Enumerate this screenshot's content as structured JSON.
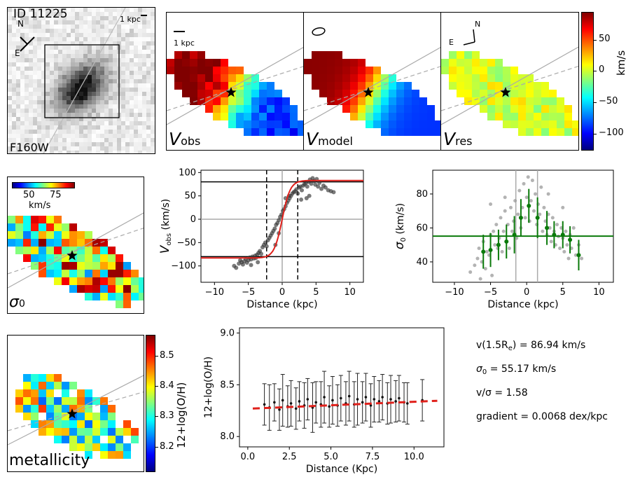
{
  "hst": {
    "id_label": "ID 11225",
    "scale_label": "1 kpc",
    "filter": "F160W",
    "north": "N",
    "east": "E"
  },
  "maps": {
    "vobs": {
      "sym": "V",
      "sub": "obs",
      "scale_label": "1 kpc"
    },
    "vmodel": {
      "sym": "V",
      "sub": "model"
    },
    "vres": {
      "sym": "V",
      "sub": "res",
      "north": "N",
      "east": "E"
    }
  },
  "vel_colorbar": {
    "ticks": [
      "50",
      "0",
      "−50",
      "−100"
    ],
    "label": "km/s"
  },
  "sigma_map": {
    "sym": "σ",
    "sub": "0",
    "ticks": [
      "50",
      "75"
    ],
    "unit": "km/s"
  },
  "metal_map": {
    "label": "metallicity",
    "ticks": [
      "8.5",
      "8.4",
      "8.3",
      "8.2"
    ],
    "cbar_label": "12+log(O/H)"
  },
  "stats": {
    "vre": {
      "pre": "v(1.5R",
      "sub": "e",
      "post": ") = 86.94 km/s"
    },
    "sigma": {
      "pre": "σ",
      "sub": "0",
      "post": " = 55.17 km/s"
    },
    "ratio": "v/σ = 1.58",
    "gradient": "gradient = 0.0068 dex/kpc"
  },
  "chart_data": [
    {
      "type": "scatter",
      "name": "rotation_curve",
      "xlabel": "Distance (kpc)",
      "ylabel_sym": "V",
      "ylabel_sub": "obs",
      "ylabel_unit": " (km/s)",
      "xlim": [
        -12,
        12
      ],
      "ylim": [
        -135,
        105
      ],
      "xticks": [
        -10,
        -5,
        0,
        5,
        10
      ],
      "yticks": [
        -100,
        -50,
        0,
        50,
        100
      ],
      "xtick_labels": [
        "−10",
        "−5",
        "0",
        "5",
        "10"
      ],
      "ytick_labels": [
        "−100",
        "−50",
        "0",
        "50",
        "100"
      ],
      "model_curve": {
        "vmax": 83,
        "rt": 1.2,
        "color": "#e0201b"
      },
      "hlines": [
        80,
        -80
      ],
      "vlines_dashed": [
        -2.3,
        2.3
      ],
      "vline_gray": 0,
      "hline_gray": 0,
      "points": [
        [
          -7.1,
          -100
        ],
        [
          -6.8,
          -104
        ],
        [
          -6.4,
          -95
        ],
        [
          -6.2,
          -88
        ],
        [
          -6.0,
          -92
        ],
        [
          -5.8,
          -97
        ],
        [
          -5.6,
          -90
        ],
        [
          -5.4,
          -85
        ],
        [
          -5.2,
          -93
        ],
        [
          -5.0,
          -88
        ],
        [
          -4.8,
          -82
        ],
        [
          -4.6,
          -86
        ],
        [
          -4.4,
          -80
        ],
        [
          -4.2,
          -84
        ],
        [
          -4.0,
          -78
        ],
        [
          -3.9,
          -83
        ],
        [
          -3.7,
          -76
        ],
        [
          -3.5,
          -72
        ],
        [
          -3.3,
          -68
        ],
        [
          -3.1,
          -74
        ],
        [
          -2.9,
          -60
        ],
        [
          -2.7,
          -55
        ],
        [
          -2.5,
          -50
        ],
        [
          -2.3,
          -58
        ],
        [
          -2.1,
          -45
        ],
        [
          -1.9,
          -40
        ],
        [
          -1.7,
          -35
        ],
        [
          -1.5,
          -30
        ],
        [
          -1.3,
          -25
        ],
        [
          -1.1,
          -20
        ],
        [
          -0.9,
          -12
        ],
        [
          -0.7,
          -8
        ],
        [
          -0.5,
          -2
        ],
        [
          -0.3,
          5
        ],
        [
          -0.1,
          10
        ],
        [
          0.1,
          18
        ],
        [
          0.3,
          22
        ],
        [
          0.5,
          28
        ],
        [
          0.7,
          35
        ],
        [
          0.9,
          40
        ],
        [
          1.1,
          45
        ],
        [
          1.3,
          50
        ],
        [
          1.5,
          55
        ],
        [
          1.7,
          58
        ],
        [
          1.9,
          60
        ],
        [
          2.1,
          64
        ],
        [
          2.3,
          55
        ],
        [
          2.5,
          68
        ],
        [
          2.7,
          70
        ],
        [
          2.9,
          62
        ],
        [
          3.1,
          72
        ],
        [
          3.3,
          75
        ],
        [
          3.5,
          78
        ],
        [
          3.7,
          70
        ],
        [
          3.9,
          80
        ],
        [
          4.1,
          85
        ],
        [
          4.3,
          76
        ],
        [
          4.5,
          88
        ],
        [
          4.7,
          82
        ],
        [
          4.9,
          74
        ],
        [
          5.1,
          86
        ],
        [
          5.3,
          70
        ],
        [
          5.5,
          78
        ],
        [
          5.8,
          65
        ],
        [
          6.1,
          72
        ],
        [
          6.4,
          68
        ],
        [
          6.8,
          62
        ],
        [
          7.2,
          60
        ],
        [
          7.6,
          58
        ],
        [
          3.6,
          45
        ],
        [
          4.0,
          50
        ],
        [
          2.8,
          42
        ],
        [
          -3.6,
          -92
        ],
        [
          -4.6,
          -98
        ],
        [
          -1.0,
          -55
        ],
        [
          1.0,
          50
        ],
        [
          0.5,
          45
        ],
        [
          -0.5,
          -30
        ]
      ]
    },
    {
      "type": "scatter",
      "name": "dispersion_profile",
      "xlabel": "Distance (kpc)",
      "ylabel_sym": "σ",
      "ylabel_sub": "0",
      "ylabel_unit": " (km/s)",
      "xlim": [
        -13,
        12
      ],
      "ylim": [
        28,
        94
      ],
      "xticks": [
        -10,
        -5,
        0,
        5,
        10
      ],
      "yticks": [
        40,
        60,
        80
      ],
      "xtick_labels": [
        "−10",
        "−5",
        "0",
        "5",
        "10"
      ],
      "ytick_labels": [
        "40",
        "60",
        "80"
      ],
      "hline": 55.17,
      "vlines_gray": [
        -1.5,
        1.5
      ],
      "binned": [
        [
          -6.0,
          46,
          10
        ],
        [
          -5.0,
          47,
          10
        ],
        [
          -3.9,
          50,
          9
        ],
        [
          -2.8,
          52,
          10
        ],
        [
          -1.7,
          56,
          11
        ],
        [
          -0.8,
          66,
          11
        ],
        [
          0.3,
          73,
          10
        ],
        [
          1.5,
          66,
          12
        ],
        [
          2.8,
          60,
          10
        ],
        [
          3.8,
          56,
          8
        ],
        [
          5.0,
          56,
          8
        ],
        [
          6.0,
          53,
          8
        ],
        [
          7.2,
          44,
          9
        ]
      ],
      "points": [
        [
          -7.8,
          34
        ],
        [
          -7.2,
          38
        ],
        [
          -6.8,
          42
        ],
        [
          -6.6,
          48
        ],
        [
          -6.2,
          40
        ],
        [
          -6.0,
          52
        ],
        [
          -5.7,
          36
        ],
        [
          -5.5,
          46
        ],
        [
          -5.2,
          44
        ],
        [
          -5.0,
          56
        ],
        [
          -4.8,
          32
        ],
        [
          -4.6,
          58
        ],
        [
          -4.4,
          50
        ],
        [
          -4.2,
          62
        ],
        [
          -4.0,
          48
        ],
        [
          -3.8,
          54
        ],
        [
          -3.6,
          66
        ],
        [
          -3.4,
          46
        ],
        [
          -3.2,
          58
        ],
        [
          -3.0,
          70
        ],
        [
          -2.8,
          52
        ],
        [
          -2.6,
          62
        ],
        [
          -2.4,
          48
        ],
        [
          -2.2,
          72
        ],
        [
          -2.0,
          58
        ],
        [
          -1.8,
          64
        ],
        [
          -1.6,
          76
        ],
        [
          -1.4,
          54
        ],
        [
          -1.2,
          68
        ],
        [
          -1.0,
          82
        ],
        [
          -0.8,
          60
        ],
        [
          -0.6,
          72
        ],
        [
          -0.4,
          86
        ],
        [
          -0.2,
          66
        ],
        [
          0.0,
          78
        ],
        [
          0.2,
          90
        ],
        [
          0.4,
          64
        ],
        [
          0.6,
          76
        ],
        [
          0.8,
          88
        ],
        [
          1.0,
          70
        ],
        [
          1.2,
          80
        ],
        [
          1.4,
          62
        ],
        [
          1.6,
          74
        ],
        [
          1.8,
          68
        ],
        [
          2.0,
          84
        ],
        [
          2.2,
          58
        ],
        [
          2.4,
          72
        ],
        [
          2.6,
          64
        ],
        [
          2.8,
          56
        ],
        [
          3.0,
          68
        ],
        [
          3.2,
          60
        ],
        [
          3.4,
          52
        ],
        [
          3.6,
          66
        ],
        [
          3.8,
          58
        ],
        [
          4.0,
          50
        ],
        [
          4.2,
          62
        ],
        [
          4.4,
          55
        ],
        [
          4.6,
          48
        ],
        [
          4.8,
          60
        ],
        [
          5.0,
          54
        ],
        [
          5.2,
          46
        ],
        [
          5.4,
          58
        ],
        [
          5.6,
          50
        ],
        [
          5.8,
          42
        ],
        [
          6.0,
          56
        ],
        [
          6.2,
          48
        ],
        [
          6.5,
          60
        ],
        [
          6.8,
          44
        ],
        [
          7.2,
          50
        ],
        [
          7.6,
          42
        ],
        [
          -5.0,
          74
        ],
        [
          -3.0,
          78
        ],
        [
          3.0,
          80
        ],
        [
          5.0,
          72
        ],
        [
          -6.4,
          30
        ]
      ]
    },
    {
      "type": "scatter",
      "name": "metallicity_gradient",
      "xlabel": "Distance (Kpc)",
      "ylabel": "12+log(O/H)",
      "xlim": [
        -0.5,
        11.8
      ],
      "ylim": [
        7.9,
        9.05
      ],
      "xticks": [
        0,
        2.5,
        5,
        7.5,
        10
      ],
      "yticks": [
        8.0,
        8.5,
        9.0
      ],
      "xtick_labels": [
        "0.0",
        "2.5",
        "5.0",
        "7.5",
        "10.0"
      ],
      "ytick_labels": [
        "8.0",
        "8.5",
        "9.0"
      ],
      "fit": {
        "x0": 0.3,
        "y0": 8.27,
        "x1": 11.4,
        "y1": 8.345,
        "color": "#e0201b"
      },
      "points": [
        [
          1.0,
          8.31,
          0.2
        ],
        [
          1.3,
          8.28,
          0.22
        ],
        [
          1.6,
          8.33,
          0.18
        ],
        [
          1.9,
          8.26,
          0.2
        ],
        [
          2.1,
          8.35,
          0.25
        ],
        [
          2.4,
          8.29,
          0.2
        ],
        [
          2.6,
          8.32,
          0.22
        ],
        [
          2.9,
          8.27,
          0.2
        ],
        [
          3.1,
          8.34,
          0.19
        ],
        [
          3.4,
          8.3,
          0.22
        ],
        [
          3.6,
          8.36,
          0.2
        ],
        [
          3.9,
          8.28,
          0.24
        ],
        [
          4.1,
          8.33,
          0.2
        ],
        [
          4.4,
          8.31,
          0.22
        ],
        [
          4.6,
          8.38,
          0.25
        ],
        [
          4.9,
          8.29,
          0.2
        ],
        [
          5.1,
          8.35,
          0.23
        ],
        [
          5.4,
          8.3,
          0.2
        ],
        [
          5.6,
          8.37,
          0.22
        ],
        [
          5.9,
          8.32,
          0.21
        ],
        [
          6.1,
          8.39,
          0.24
        ],
        [
          6.4,
          8.31,
          0.22
        ],
        [
          6.6,
          8.36,
          0.25
        ],
        [
          6.9,
          8.33,
          0.2
        ],
        [
          7.1,
          8.38,
          0.23
        ],
        [
          7.4,
          8.3,
          0.21
        ],
        [
          7.6,
          8.36,
          0.22
        ],
        [
          7.9,
          8.34,
          0.2
        ],
        [
          8.1,
          8.38,
          0.22
        ],
        [
          8.4,
          8.32,
          0.2
        ],
        [
          8.6,
          8.36,
          0.23
        ],
        [
          8.9,
          8.34,
          0.2
        ],
        [
          9.1,
          8.37,
          0.22
        ],
        [
          9.4,
          8.33,
          0.19
        ],
        [
          9.6,
          8.32,
          0.2
        ],
        [
          10.5,
          8.35,
          0.2
        ]
      ]
    }
  ]
}
